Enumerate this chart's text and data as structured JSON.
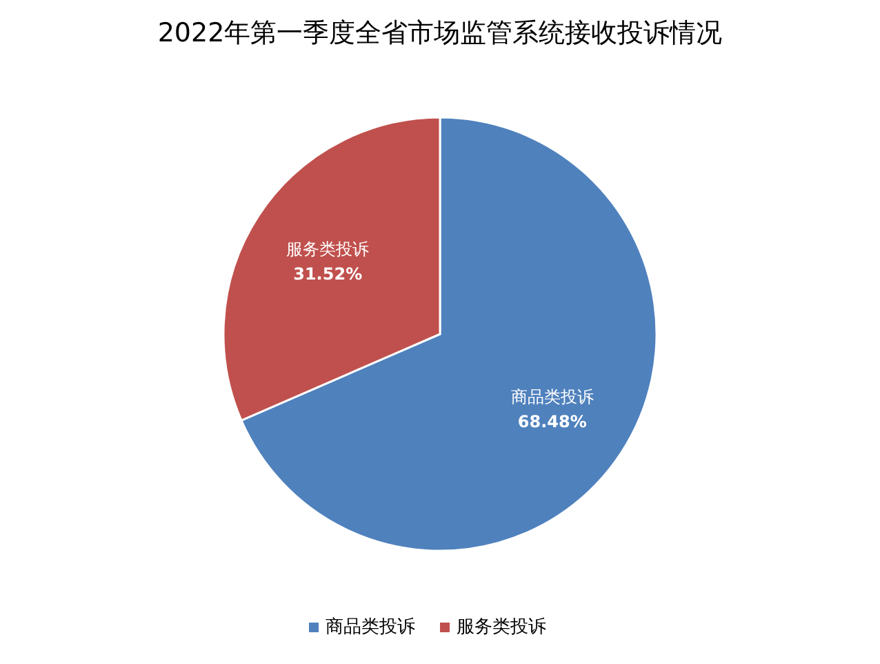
{
  "chart_data": {
    "type": "pie",
    "title": "2022年第一季度全省市场监管系统接收投诉情况",
    "categories": [
      "商品类投诉",
      "服务类投诉"
    ],
    "values": [
      68.48,
      31.52
    ],
    "value_labels": [
      "68.48%",
      "31.52%"
    ],
    "colors": [
      "#4f81bd",
      "#c0504d"
    ],
    "legend": "bottom"
  }
}
